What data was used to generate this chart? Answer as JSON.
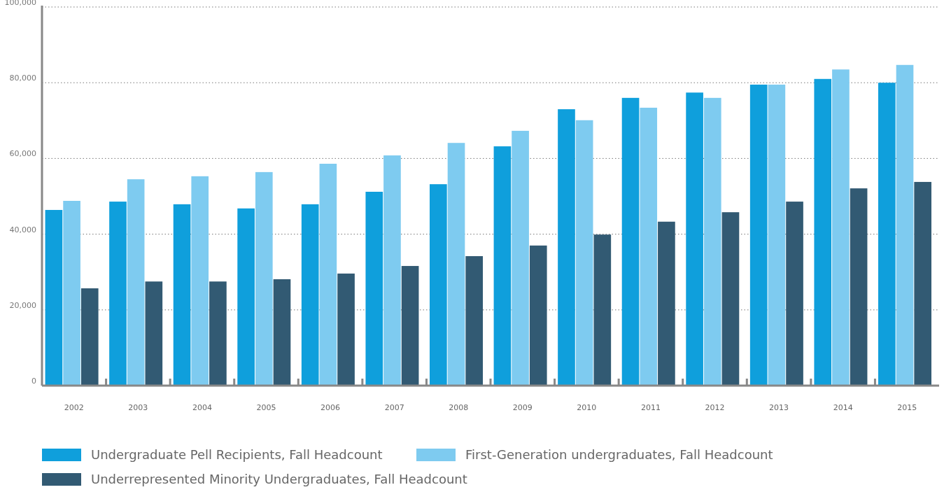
{
  "chart_data": {
    "type": "bar",
    "categories": [
      "2002",
      "2003",
      "2004",
      "2005",
      "2006",
      "2007",
      "2008",
      "2009",
      "2010",
      "2011",
      "2012",
      "2013",
      "2014",
      "2015"
    ],
    "series": [
      {
        "name": "Undergraduate Pell Recipients, Fall Headcount",
        "color": "#0f9fdc",
        "values": [
          46400,
          48600,
          47900,
          46800,
          47900,
          51200,
          53200,
          63200,
          73000,
          76000,
          77400,
          79500,
          81000,
          80000
        ]
      },
      {
        "name": "First-Generation undergraduates, Fall Headcount",
        "color": "#7ecbf0",
        "values": [
          48800,
          54500,
          55300,
          56400,
          58600,
          60800,
          64100,
          67300,
          70100,
          73400,
          76000,
          79500,
          83500,
          84700
        ]
      },
      {
        "name": "Underrepresented Minority Undergraduates, Fall Headcount",
        "color": "#325a73",
        "values": [
          25700,
          27500,
          27500,
          28100,
          29600,
          31600,
          34200,
          37000,
          39900,
          43300,
          45800,
          48600,
          52100,
          53800
        ]
      }
    ],
    "ylim": [
      0,
      100000
    ],
    "yticks": [
      0,
      {
        "value": 20000,
        "label": "20,000"
      },
      {
        "value": 40000,
        "label": "40,000"
      },
      {
        "value": 60000,
        "label": "60,000"
      },
      {
        "value": 80000,
        "label": "80,000"
      },
      {
        "value": 100000,
        "label": "100,000"
      }
    ],
    "grid": "y",
    "legend": "bottom"
  }
}
